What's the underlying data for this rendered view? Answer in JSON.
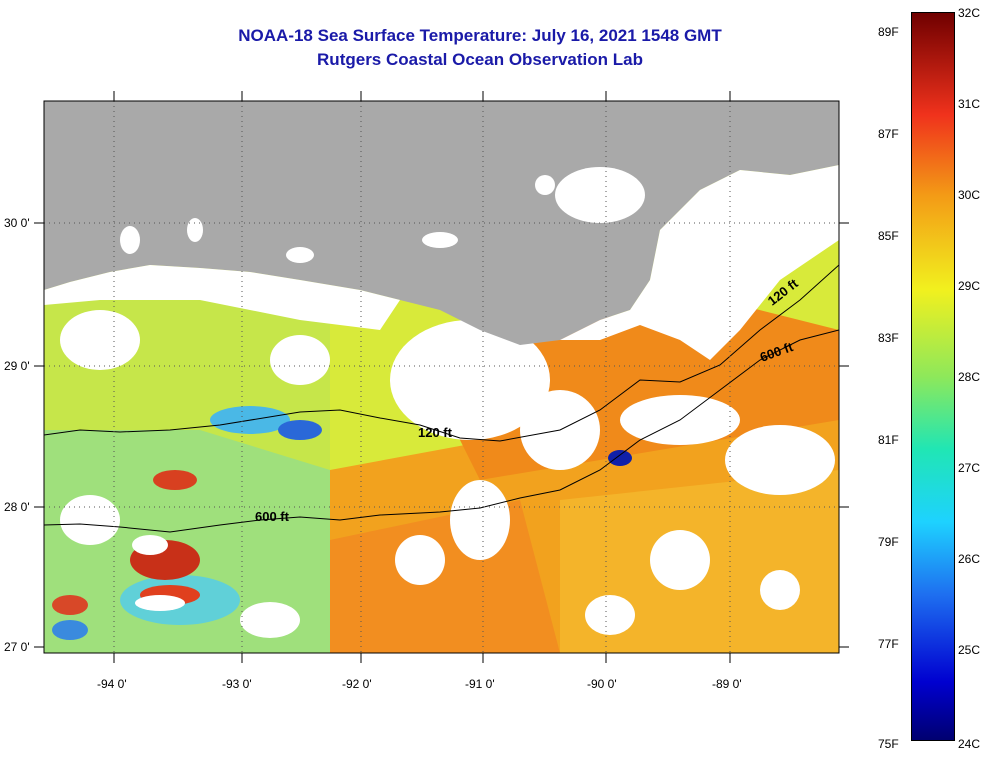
{
  "title": {
    "line1": "NOAA-18 Sea Surface Temperature:  July 16, 2021 1548 GMT",
    "line2": "Rutgers Coastal Ocean Observation Lab"
  },
  "colors": {
    "title": "#1a1aa8",
    "land": "#a9a9a9",
    "cloud": "#ffffff"
  },
  "map": {
    "lon_range": [
      -94.5,
      -88.3
    ],
    "lat_range": [
      26.95,
      30.83
    ],
    "lon_ticks": [
      "-94 0'",
      "-93 0'",
      "-92 0'",
      "-91 0'",
      "-90 0'",
      "-89 0'"
    ],
    "lat_ticks": [
      "30 0'",
      "29 0'",
      "28 0'",
      "27 0'"
    ],
    "grid": "dotted",
    "contours": [
      {
        "label": "120 ft"
      },
      {
        "label": "600 ft"
      }
    ]
  },
  "colorbar": {
    "celsius_labels": [
      "32C",
      "31C",
      "30C",
      "29C",
      "28C",
      "27C",
      "26C",
      "25C",
      "24C"
    ],
    "fahrenheit_labels": [
      "89F",
      "87F",
      "85F",
      "83F",
      "81F",
      "79F",
      "77F",
      "75F"
    ]
  }
}
